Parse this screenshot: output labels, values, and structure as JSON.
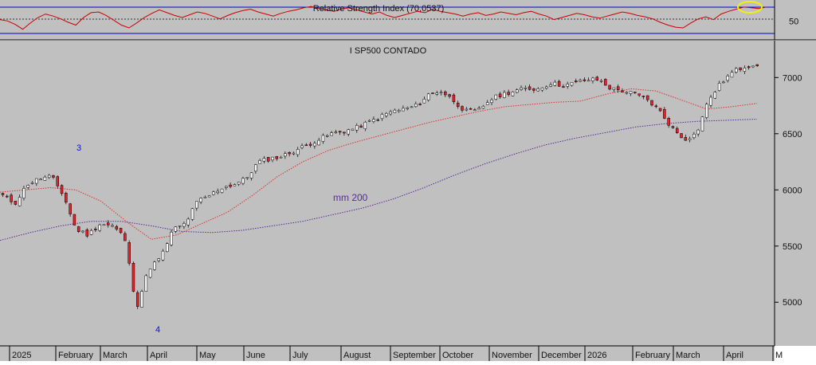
{
  "chart_data": [
    {
      "type": "line",
      "title": "Relative Strength Index (70,0537)",
      "y_tick_labels": [
        "50"
      ],
      "reference_levels": [
        30,
        50,
        70
      ],
      "ylim": [
        25,
        78
      ],
      "highlight": "RSI peak circled in yellow near 70 (latest reading)",
      "series": [
        {
          "color": "#cc0000",
          "values": [
            52,
            50,
            45,
            38,
            47,
            55,
            60,
            57,
            53,
            48,
            44,
            55,
            62,
            63,
            58,
            51,
            44,
            40,
            47,
            55,
            61,
            66,
            62,
            58,
            55,
            59,
            63,
            61,
            57,
            53,
            58,
            62,
            65,
            67,
            63,
            60,
            57,
            61,
            64,
            66,
            69,
            71,
            68,
            66,
            64,
            67,
            69,
            66,
            63,
            60,
            63,
            58,
            55,
            58,
            61,
            64,
            62,
            67,
            64,
            62,
            60,
            57,
            60,
            62,
            58,
            60,
            63,
            61,
            59,
            62,
            64,
            60,
            57,
            52,
            55,
            58,
            61,
            59,
            56,
            54,
            57,
            60,
            63,
            61,
            58,
            56,
            53,
            48,
            44,
            41,
            40,
            47,
            53,
            56,
            52,
            60,
            64,
            67,
            70,
            69,
            68,
            70
          ]
        }
      ]
    },
    {
      "type": "candlestick",
      "title": "I SP500 CONTADO",
      "annotations": [
        "3",
        "4",
        "mm 200"
      ],
      "y_tick_labels": [
        "5000",
        "5500",
        "6000",
        "6500",
        "7000"
      ],
      "ylim": [
        4640,
        7300
      ],
      "x_tick_labels": [
        "2025",
        "February",
        "March",
        "April",
        "May",
        "June",
        "July",
        "August",
        "September",
        "October",
        "November",
        "December",
        "2026",
        "February",
        "March",
        "April",
        "M"
      ],
      "colors": {
        "up": "#ffffff",
        "down": "#e8202a",
        "ma_fast": "#e03030",
        "ma_200": "#5a2a9a",
        "background": "#c0c0c0"
      },
      "series": [
        {
          "name": "close",
          "values": [
            5950,
            5880,
            6050,
            6100,
            6120,
            5950,
            5650,
            5600,
            5700,
            5680,
            5580,
            4950,
            5300,
            5400,
            5650,
            5700,
            5900,
            5950,
            6020,
            6050,
            6100,
            6250,
            6280,
            6300,
            6350,
            6400,
            6450,
            6500,
            6520,
            6550,
            6600,
            6650,
            6700,
            6720,
            6750,
            6850,
            6880,
            6800,
            6700,
            6700,
            6800,
            6850,
            6880,
            6900,
            6900,
            6950,
            6930,
            6950,
            6980,
            6980,
            6900,
            6880,
            6850,
            6800,
            6700,
            6550,
            6450,
            6500,
            6800,
            6950,
            7050,
            7100,
            7120
          ]
        },
        {
          "name": "mm 200",
          "values": [
            5550,
            5620,
            5680,
            5720,
            5720,
            5680,
            5630,
            5620,
            5640,
            5680,
            5720,
            5780,
            5840,
            5920,
            6020,
            6130,
            6230,
            6320,
            6400,
            6460,
            6510,
            6560,
            6590,
            6610,
            6620,
            6630
          ]
        },
        {
          "name": "fast average",
          "values": [
            5980,
            6000,
            6020,
            6000,
            5900,
            5720,
            5560,
            5600,
            5700,
            5800,
            5950,
            6120,
            6250,
            6350,
            6420,
            6480,
            6540,
            6600,
            6650,
            6700,
            6740,
            6760,
            6780,
            6790,
            6850,
            6900,
            6880,
            6800,
            6720,
            6740,
            6770
          ]
        }
      ]
    }
  ]
}
